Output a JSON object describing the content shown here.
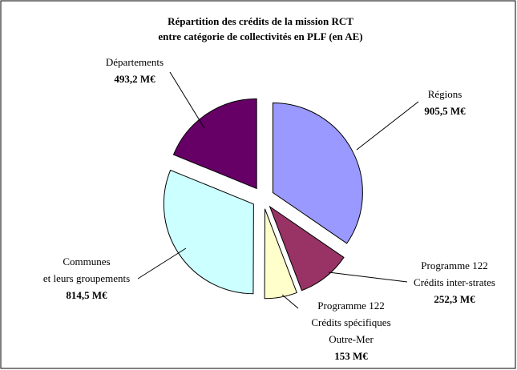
{
  "chart_data": {
    "type": "pie",
    "title": [
      "Répartition des crédits de la mission RCT",
      "entre catégorie de collectivités en PLF (en AE)"
    ],
    "categories": [
      [
        "Régions"
      ],
      [
        "Programme 122",
        "Crédits inter-strates"
      ],
      [
        "Programme 122",
        "Crédits spécifiques",
        "Outre-Mer"
      ],
      [
        "Communes",
        "et leurs groupements"
      ],
      [
        "Départements"
      ]
    ],
    "values": [
      905.5,
      252.3,
      153,
      814.5,
      493.2
    ],
    "value_labels": [
      "905,5 M€",
      "252,3 M€",
      "153 M€",
      "814,5 M€",
      "493,2 M€"
    ],
    "colors": [
      "#9999ff",
      "#993366",
      "#ffffcc",
      "#ccffff",
      "#660066"
    ]
  }
}
